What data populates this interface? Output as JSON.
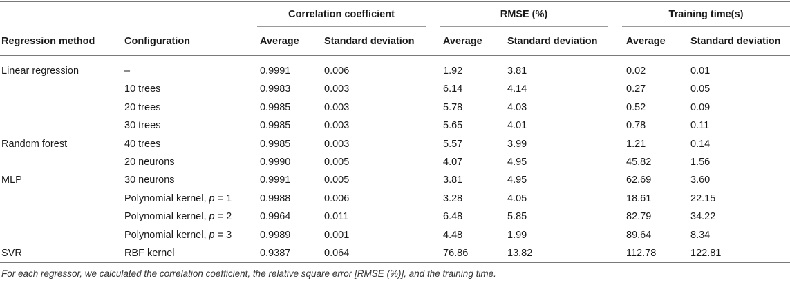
{
  "table": {
    "groups": [
      "Correlation coefficient",
      "RMSE (%)",
      "Training time(s)"
    ],
    "headers": [
      "Regression method",
      "Configuration",
      "Average",
      "Standard deviation",
      "Average",
      "Standard deviation",
      "Average",
      "Standard deviation"
    ],
    "rows": [
      {
        "method": "Linear regression",
        "config": "–",
        "corr_avg": "0.9991",
        "corr_sd": "0.006",
        "rmse_avg": "1.92",
        "rmse_sd": "3.81",
        "time_avg": "0.02",
        "time_sd": "0.01"
      },
      {
        "method": "",
        "config": "10 trees",
        "corr_avg": "0.9983",
        "corr_sd": "0.003",
        "rmse_avg": "6.14",
        "rmse_sd": "4.14",
        "time_avg": "0.27",
        "time_sd": "0.05"
      },
      {
        "method": "",
        "config": "20 trees",
        "corr_avg": "0.9985",
        "corr_sd": "0.003",
        "rmse_avg": "5.78",
        "rmse_sd": "4.03",
        "time_avg": "0.52",
        "time_sd": "0.09"
      },
      {
        "method": "",
        "config": "30 trees",
        "corr_avg": "0.9985",
        "corr_sd": "0.003",
        "rmse_avg": "5.65",
        "rmse_sd": "4.01",
        "time_avg": "0.78",
        "time_sd": "0.11"
      },
      {
        "method": "Random forest",
        "config": "40 trees",
        "corr_avg": "0.9985",
        "corr_sd": "0.003",
        "rmse_avg": "5.57",
        "rmse_sd": "3.99",
        "time_avg": "1.21",
        "time_sd": "0.14"
      },
      {
        "method": "",
        "config": "20 neurons",
        "corr_avg": "0.9990",
        "corr_sd": "0.005",
        "rmse_avg": "4.07",
        "rmse_sd": "4.95",
        "time_avg": "45.82",
        "time_sd": "1.56"
      },
      {
        "method": "MLP",
        "config": "30 neurons",
        "corr_avg": "0.9991",
        "corr_sd": "0.005",
        "rmse_avg": "3.81",
        "rmse_sd": "4.95",
        "time_avg": "62.69",
        "time_sd": "3.60"
      },
      {
        "method": "",
        "config": "Polynomial kernel, p = 1",
        "corr_avg": "0.9988",
        "corr_sd": "0.006",
        "rmse_avg": "3.28",
        "rmse_sd": "4.05",
        "time_avg": "18.61",
        "time_sd": "22.15"
      },
      {
        "method": "",
        "config": "Polynomial kernel, p = 2",
        "corr_avg": "0.9964",
        "corr_sd": "0.011",
        "rmse_avg": "6.48",
        "rmse_sd": "5.85",
        "time_avg": "82.79",
        "time_sd": "34.22"
      },
      {
        "method": "",
        "config": "Polynomial kernel, p = 3",
        "corr_avg": "0.9989",
        "corr_sd": "0.001",
        "rmse_avg": "4.48",
        "rmse_sd": "1.99",
        "time_avg": "89.64",
        "time_sd": "8.34"
      },
      {
        "method": "SVR",
        "config": "RBF kernel",
        "corr_avg": "0.9387",
        "corr_sd": "0.064",
        "rmse_avg": "76.86",
        "rmse_sd": "13.82",
        "time_avg": "112.78",
        "time_sd": "122.81"
      }
    ],
    "footnote": "For each regressor, we calculated the correlation coefficient, the relative square error [RMSE (%)], and the training time."
  }
}
